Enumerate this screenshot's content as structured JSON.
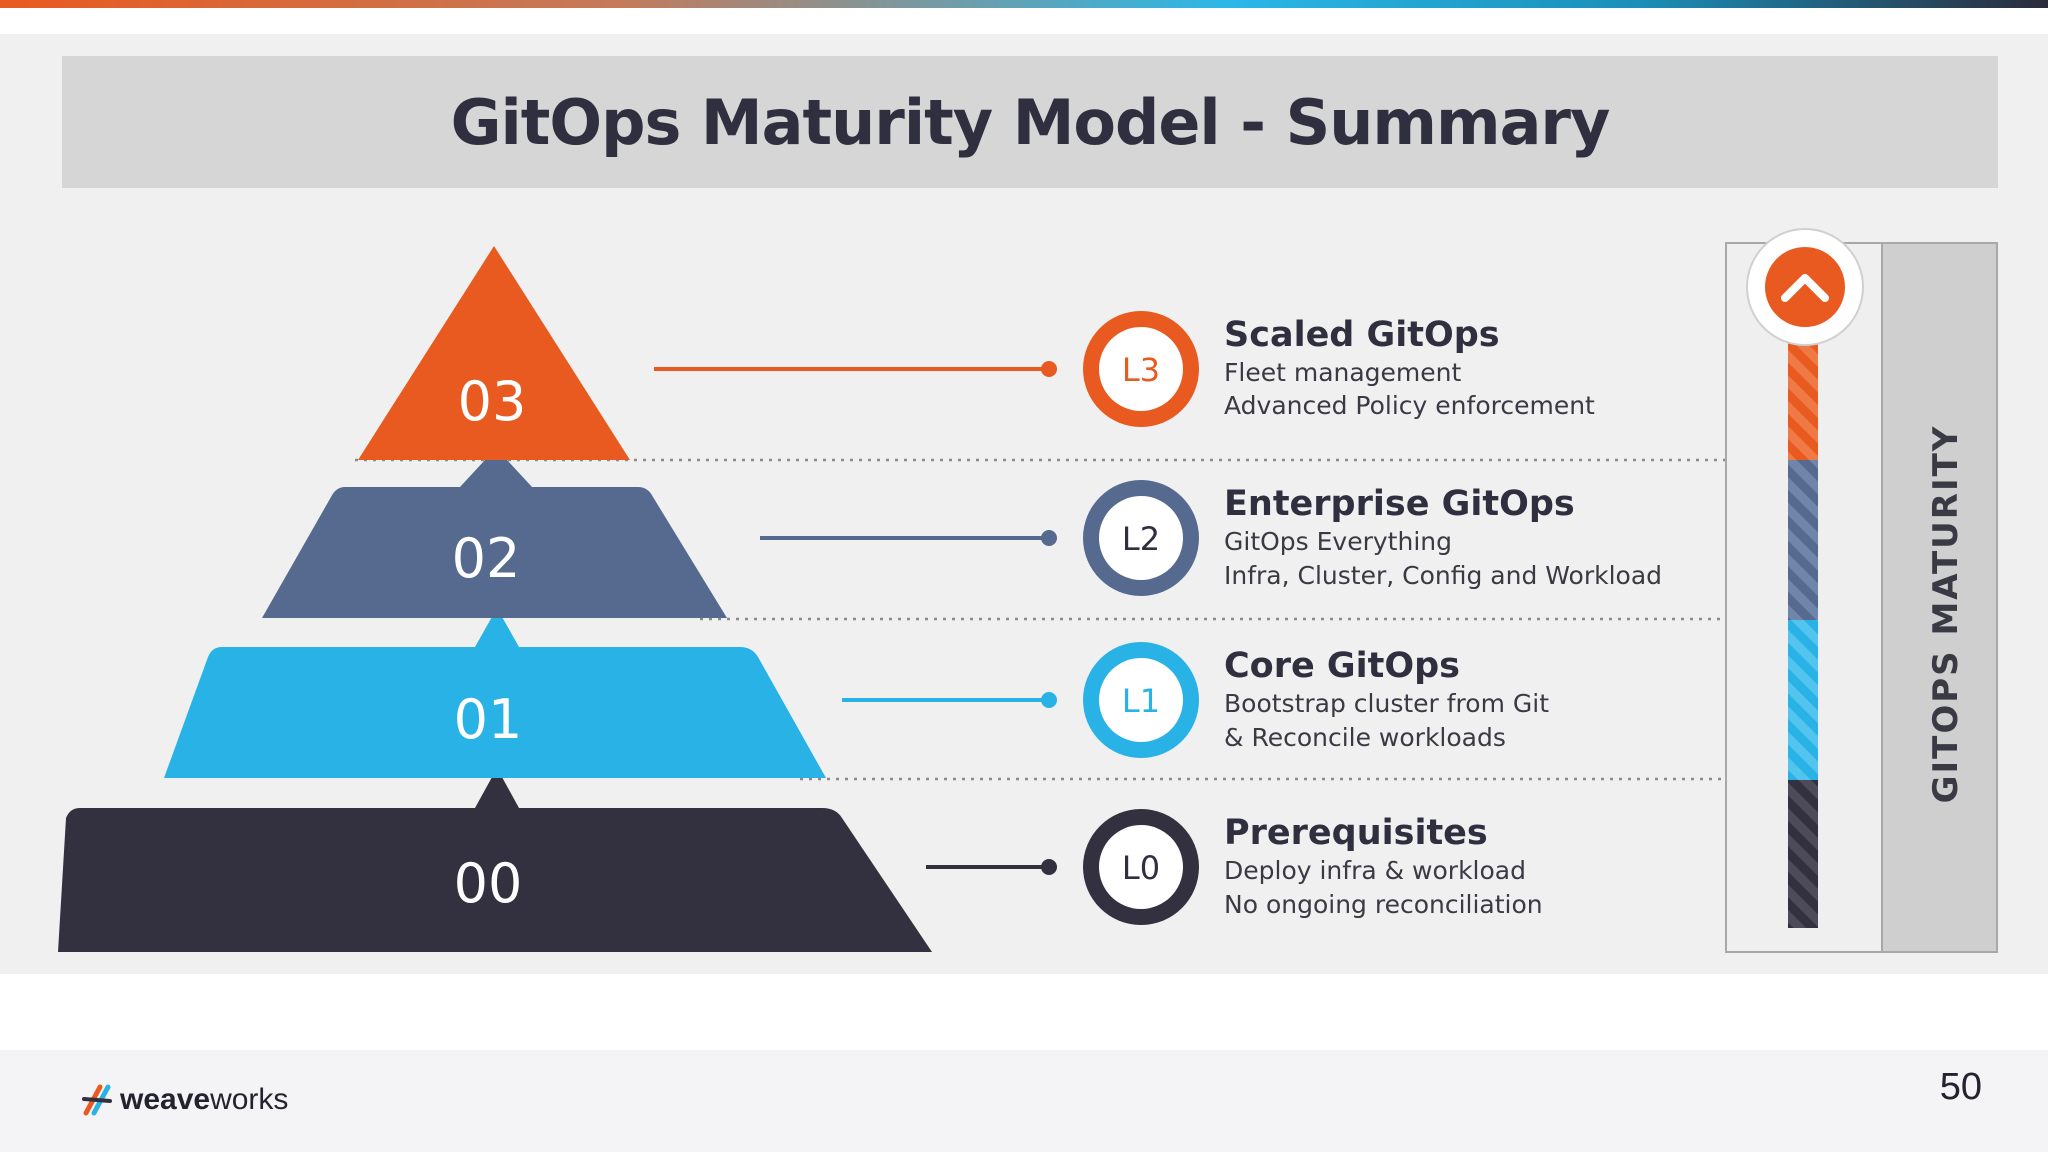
{
  "title": "GitOps Maturity Model - Summary",
  "colors": {
    "l3": "#e85a1f",
    "l2": "#566a90",
    "l1": "#29b2e6",
    "l0": "#33313f"
  },
  "levels": [
    {
      "num": "03",
      "badge": "L3",
      "title": "Scaled GitOps",
      "desc1": "Fleet management",
      "desc2": "Advanced Policy enforcement"
    },
    {
      "num": "02",
      "badge": "L2",
      "title": "Enterprise GitOps",
      "desc1": "GitOps Everything",
      "desc2": "Infra, Cluster, Config and Workload"
    },
    {
      "num": "01",
      "badge": "L1",
      "title": "Core GitOps",
      "desc1": "Bootstrap cluster from Git",
      "desc2": "& Reconcile workloads"
    },
    {
      "num": "00",
      "badge": "L0",
      "title": "Prerequisites",
      "desc1": "Deploy infra & workload",
      "desc2": "No ongoing reconciliation"
    }
  ],
  "maturity_label": "GITOPS MATURITY",
  "footer": {
    "brand_bold": "weave",
    "brand_rest": "works",
    "page_number": "50"
  },
  "icons": {
    "up": "chevron-up-icon",
    "logo": "weaveworks-logo-icon"
  }
}
